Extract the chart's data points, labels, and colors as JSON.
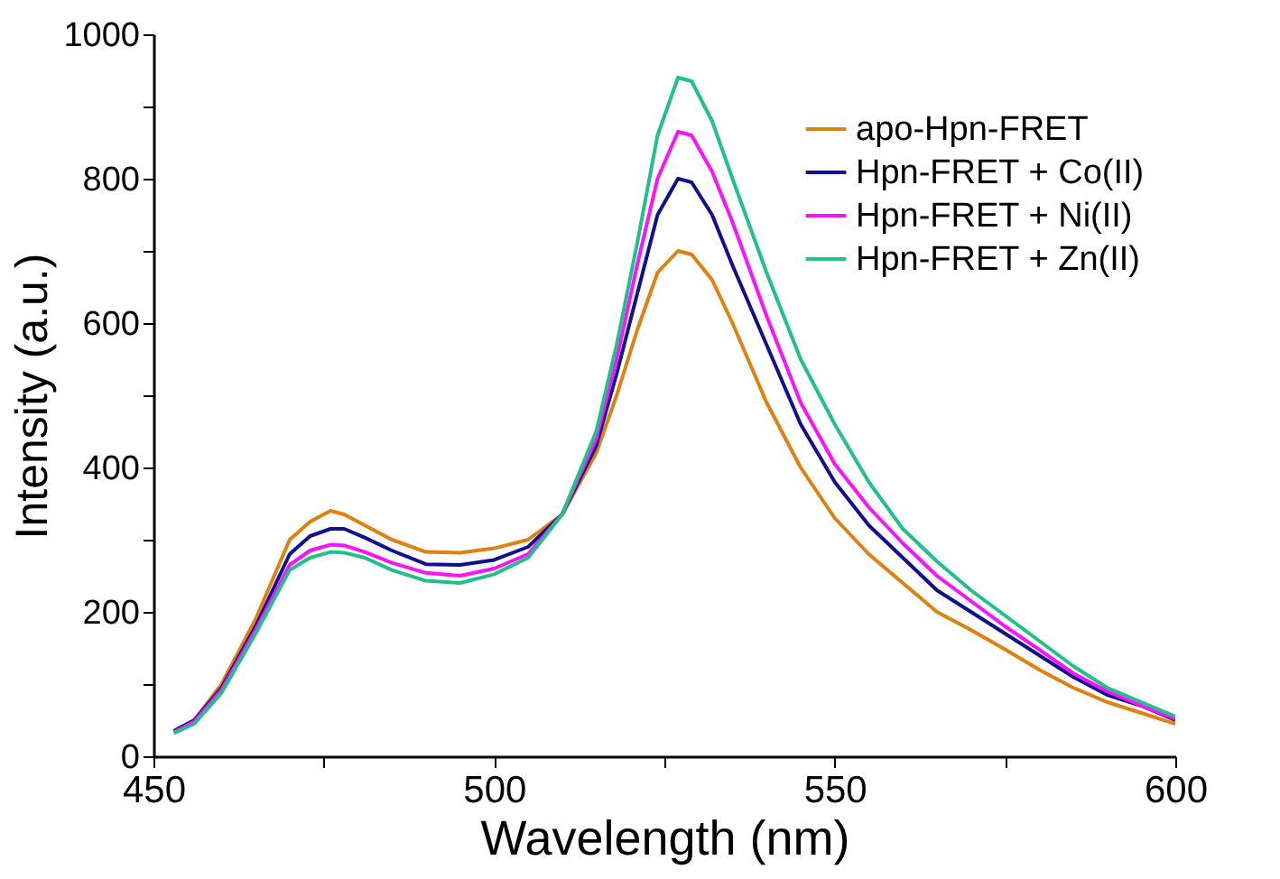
{
  "chart_data": {
    "type": "line",
    "xlabel": "Wavelength (nm)",
    "ylabel": "Intensity (a.u.)",
    "xlim": [
      450,
      600
    ],
    "ylim": [
      0,
      1000
    ],
    "xticks": [
      450,
      {
        "value": 475,
        "label": null
      },
      500,
      {
        "value": 525,
        "label": null
      },
      550,
      {
        "value": 575,
        "label": null
      },
      600
    ],
    "yticks": [
      0,
      {
        "value": 100,
        "label": null
      },
      200,
      {
        "value": 300,
        "label": null
      },
      400,
      {
        "value": 500,
        "label": null
      },
      600,
      {
        "value": 700,
        "label": null
      },
      800,
      {
        "value": 900,
        "label": null
      },
      1000
    ],
    "grid": false,
    "legend": "top right",
    "marker": "none",
    "line_style": "solid",
    "x": [
      453,
      456,
      460,
      465,
      470,
      473,
      476,
      478,
      481,
      485,
      490,
      495,
      500,
      505,
      510,
      515,
      518,
      521,
      524,
      527,
      529,
      532,
      535,
      540,
      545,
      550,
      555,
      560,
      565,
      570,
      575,
      580,
      585,
      590,
      595,
      600
    ],
    "series": [
      {
        "name": "apo-Hpn-FRET",
        "color": "#e08010",
        "values": [
          35,
          50,
          100,
          190,
          300,
          325,
          340,
          335,
          320,
          300,
          283,
          282,
          288,
          300,
          335,
          420,
          500,
          590,
          670,
          700,
          695,
          660,
          600,
          490,
          400,
          330,
          280,
          240,
          200,
          175,
          148,
          120,
          95,
          75,
          60,
          45
        ]
      },
      {
        "name": "Hpn-FRET + Co(II)",
        "color": "#10108f",
        "values": [
          35,
          50,
          95,
          180,
          280,
          305,
          315,
          315,
          303,
          285,
          266,
          265,
          272,
          290,
          335,
          430,
          530,
          640,
          750,
          800,
          795,
          750,
          680,
          570,
          460,
          380,
          320,
          275,
          230,
          200,
          170,
          140,
          110,
          85,
          70,
          50
        ]
      },
      {
        "name": "Hpn-FRET + Ni(II)",
        "color": "#ff10ff",
        "values": [
          33,
          48,
          92,
          175,
          265,
          285,
          293,
          292,
          283,
          268,
          254,
          250,
          260,
          280,
          335,
          440,
          550,
          680,
          800,
          865,
          860,
          810,
          740,
          610,
          490,
          405,
          345,
          295,
          250,
          215,
          180,
          148,
          115,
          90,
          70,
          52
        ]
      },
      {
        "name": "Hpn-FRET + Zn(II)",
        "color": "#20c08a",
        "values": [
          32,
          45,
          88,
          170,
          258,
          275,
          283,
          282,
          275,
          258,
          243,
          240,
          252,
          275,
          335,
          450,
          570,
          710,
          860,
          940,
          935,
          880,
          800,
          670,
          550,
          460,
          380,
          315,
          270,
          230,
          195,
          160,
          125,
          95,
          75,
          55
        ]
      }
    ]
  }
}
